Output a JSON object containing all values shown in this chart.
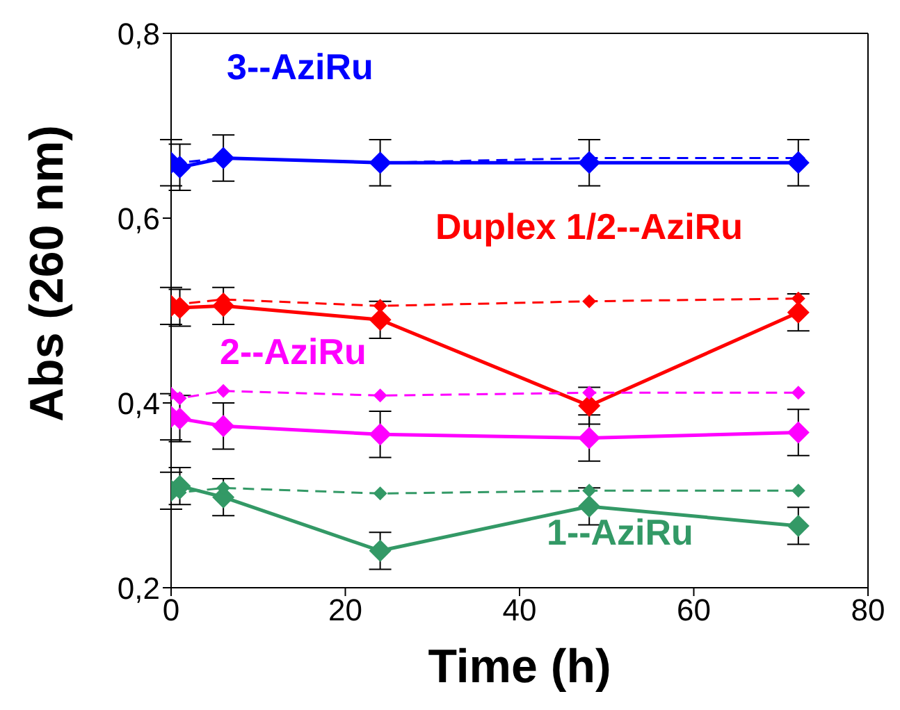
{
  "chart_data": {
    "type": "line",
    "xlabel": "Time (h)",
    "ylabel": "Abs (260 nm)",
    "xlim": [
      0,
      80
    ],
    "xticks": [
      0,
      20,
      40,
      60,
      80
    ],
    "ylim": [
      0.2,
      0.8
    ],
    "yticks": [
      {
        "value": 0.2,
        "label": "0,2"
      },
      {
        "value": 0.4,
        "label": "0,4"
      },
      {
        "value": 0.6,
        "label": "0,6"
      },
      {
        "value": 0.8,
        "label": "0,8"
      }
    ],
    "x": [
      0,
      1,
      6,
      24,
      48,
      72
    ],
    "marker": "diamond",
    "legend": false,
    "series": [
      {
        "name": "3--AziRu",
        "color": "#0000ff",
        "line_style": "solid",
        "values": [
          0.66,
          0.655,
          0.665,
          0.66,
          0.66,
          0.66
        ],
        "errors": [
          0.025,
          0.025,
          0.025,
          0.025,
          0.025,
          0.025
        ]
      },
      {
        "color": "#0000ff",
        "line_style": "dashed",
        "values": [
          0.66,
          0.66,
          0.665,
          0.66,
          0.665,
          0.665
        ]
      },
      {
        "name": "Duplex 1/2--AziRu",
        "color": "#ff0000",
        "line_style": "solid",
        "values": [
          0.505,
          0.503,
          0.505,
          0.49,
          0.397,
          0.498
        ],
        "errors": [
          0.02,
          0.02,
          0.02,
          0.02,
          0.02,
          0.02
        ]
      },
      {
        "color": "#ff0000",
        "line_style": "dashed",
        "values": [
          0.507,
          0.507,
          0.512,
          0.505,
          0.51,
          0.513
        ]
      },
      {
        "name": "2--AziRu",
        "color": "#ff00ff",
        "line_style": "solid",
        "values": [
          0.385,
          0.383,
          0.375,
          0.366,
          0.362,
          0.368
        ],
        "errors": [
          0.025,
          0.025,
          0.025,
          0.025,
          0.025,
          0.025
        ]
      },
      {
        "color": "#ff00ff",
        "line_style": "dashed",
        "values": [
          0.41,
          0.405,
          0.413,
          0.408,
          0.411,
          0.411
        ]
      },
      {
        "name": "1--AziRu",
        "color": "#339966",
        "line_style": "solid",
        "values": [
          0.305,
          0.31,
          0.298,
          0.24,
          0.288,
          0.267
        ],
        "errors": [
          0.02,
          0.02,
          0.02,
          0.02,
          0.02,
          0.02
        ]
      },
      {
        "color": "#339966",
        "line_style": "dashed",
        "values": [
          0.305,
          0.303,
          0.308,
          0.302,
          0.305,
          0.305
        ]
      }
    ]
  }
}
